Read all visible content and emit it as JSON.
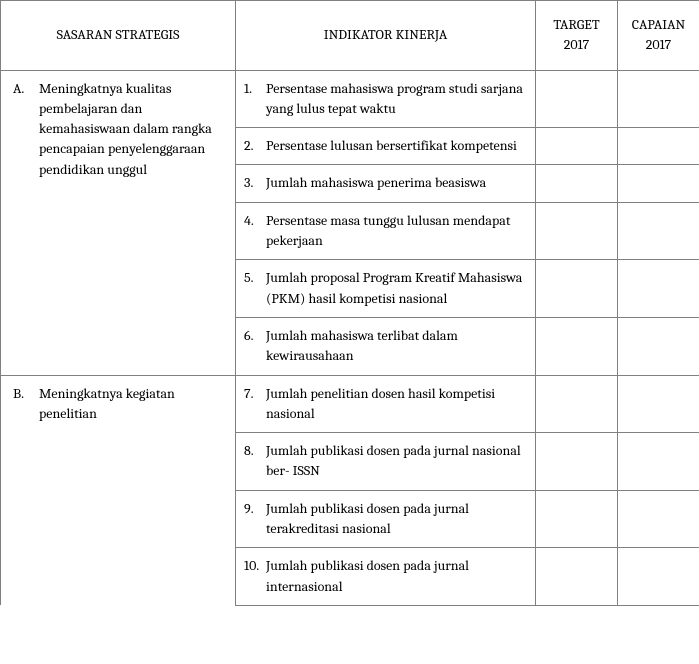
{
  "headers": {
    "sasaran": "SASARAN STRATEGIS",
    "indikator": "INDIKATOR KINERJA",
    "target": "TARGET 2017",
    "capaian": "CAPAIAN 2017"
  },
  "sections": {
    "a": {
      "marker": "A.",
      "text": "Meningkatnya kualitas pembelajaran dan kemahasiswaan dalam rangka pencapaian penyelenggaraan pendidikan unggul",
      "items": [
        {
          "marker": "1.",
          "text": "Persentase mahasiswa program studi sarjana yang lulus tepat waktu",
          "target": "",
          "capaian": ""
        },
        {
          "marker": "2.",
          "text": "Persentase lulusan bersertifikat kompetensi",
          "target": "",
          "capaian": ""
        },
        {
          "marker": "3.",
          "text": "Jumlah mahasiswa penerima beasiswa",
          "target": "",
          "capaian": ""
        },
        {
          "marker": "4.",
          "text": "Persentase masa tunggu lulusan mendapat pekerjaan",
          "target": "",
          "capaian": ""
        },
        {
          "marker": "5.",
          "text": "Jumlah proposal Program Kreatif Mahasiswa (PKM) hasil kompetisi nasional",
          "target": "",
          "capaian": ""
        },
        {
          "marker": "6.",
          "text": "Jumlah mahasiswa terlibat dalam kewirausahaan",
          "target": "",
          "capaian": ""
        }
      ]
    },
    "b": {
      "marker": "B.",
      "text": "Meningkatnya kegiatan penelitian",
      "items": [
        {
          "marker": "7.",
          "text": "Jumlah penelitian dosen hasil kompetisi nasional",
          "target": "",
          "capaian": ""
        },
        {
          "marker": "8.",
          "text": "Jumlah publikasi dosen pada jurnal nasional ber- ISSN",
          "target": "",
          "capaian": ""
        },
        {
          "marker": "9.",
          "text": "Jumlah publikasi dosen pada jurnal terakreditasi nasional",
          "target": "",
          "capaian": ""
        },
        {
          "marker": "10.",
          "text": "Jumlah publikasi dosen pada jurnal internasional",
          "target": "",
          "capaian": ""
        }
      ]
    }
  }
}
